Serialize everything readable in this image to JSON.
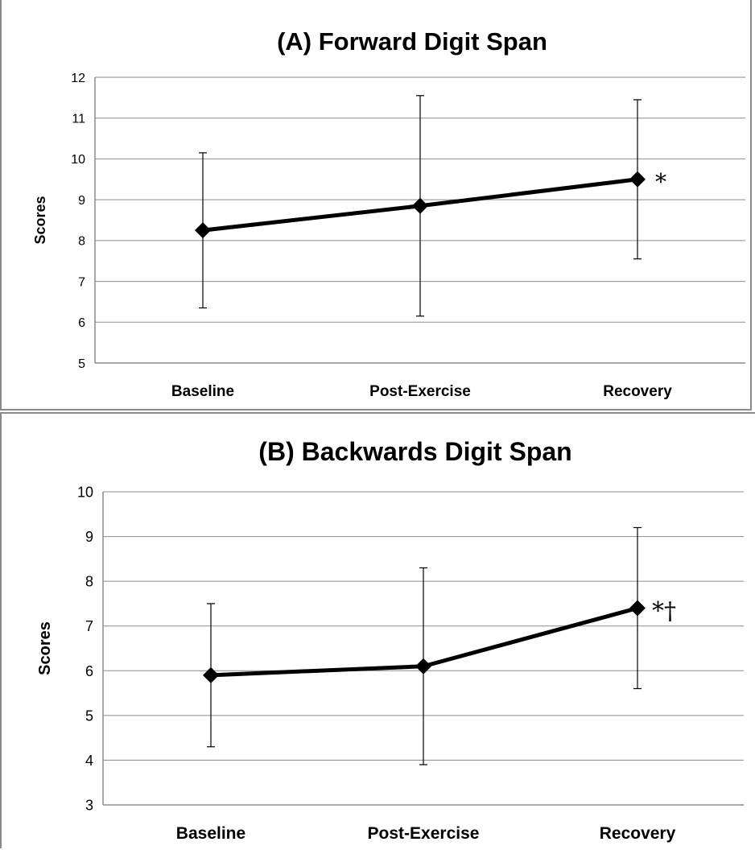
{
  "chart_data": [
    {
      "type": "line",
      "title": "(A) Forward Digit Span",
      "xlabel": "",
      "ylabel": "Scores",
      "ylim": [
        5,
        12
      ],
      "yticks": [
        "5",
        "6",
        "7",
        "8",
        "9",
        "10",
        "11",
        "12"
      ],
      "grid": "horizontal",
      "categories": [
        "Baseline",
        "Post-Exercise",
        "Recovery"
      ],
      "series": [
        {
          "values": [
            8.25,
            8.85,
            9.5
          ],
          "error_low": [
            6.35,
            6.15,
            7.55
          ],
          "error_high": [
            10.15,
            11.55,
            11.45
          ]
        }
      ],
      "annotations": [
        "",
        "",
        "*"
      ],
      "color": "#000000"
    },
    {
      "type": "line",
      "title": "(B) Backwards Digit Span",
      "xlabel": "",
      "ylabel": "Scores",
      "ylim": [
        3,
        10
      ],
      "yticks": [
        "3",
        "4",
        "5",
        "6",
        "7",
        "8",
        "9",
        "10"
      ],
      "grid": "horizontal",
      "categories": [
        "Baseline",
        "Post-Exercise",
        "Recovery"
      ],
      "series": [
        {
          "values": [
            5.9,
            6.1,
            7.4
          ],
          "error_low": [
            4.3,
            3.9,
            5.6
          ],
          "error_high": [
            7.5,
            8.3,
            9.2
          ]
        }
      ],
      "annotations": [
        "",
        "",
        "*†"
      ],
      "color": "#000000"
    }
  ]
}
